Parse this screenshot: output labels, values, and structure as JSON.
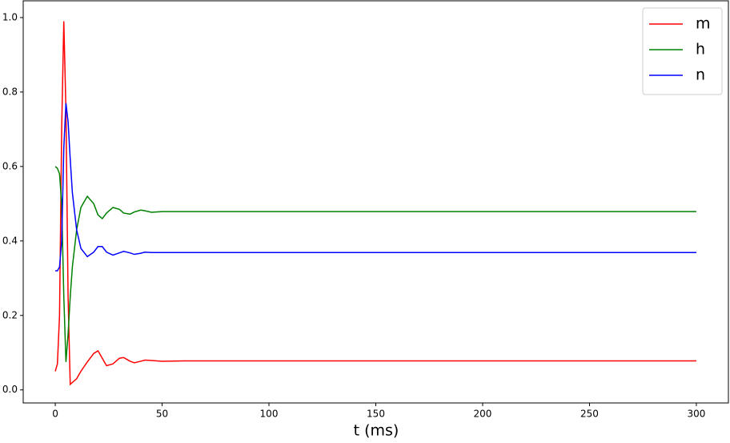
{
  "chart_data": {
    "type": "line",
    "x_label": "t (ms)",
    "x": [
      0,
      1,
      2,
      3,
      4,
      5,
      6,
      7,
      8,
      10,
      12,
      15,
      18,
      20,
      22,
      24,
      27,
      30,
      32,
      35,
      37,
      40,
      42,
      45,
      50,
      60,
      100,
      150,
      200,
      250,
      300
    ],
    "series": [
      {
        "name": "m",
        "color": "#ff0000",
        "values": [
          0.05,
          0.07,
          0.2,
          0.7,
          0.99,
          0.75,
          0.25,
          0.015,
          0.02,
          0.03,
          0.05,
          0.075,
          0.098,
          0.105,
          0.085,
          0.065,
          0.07,
          0.085,
          0.087,
          0.077,
          0.073,
          0.077,
          0.08,
          0.079,
          0.077,
          0.078,
          0.078,
          0.078,
          0.078,
          0.078,
          0.078
        ]
      },
      {
        "name": "h",
        "color": "#008000",
        "values": [
          0.6,
          0.595,
          0.58,
          0.5,
          0.25,
          0.075,
          0.15,
          0.25,
          0.33,
          0.43,
          0.49,
          0.52,
          0.5,
          0.47,
          0.46,
          0.475,
          0.49,
          0.485,
          0.475,
          0.472,
          0.478,
          0.483,
          0.481,
          0.477,
          0.479,
          0.479,
          0.479,
          0.479,
          0.479,
          0.479,
          0.479
        ]
      },
      {
        "name": "n",
        "color": "#0000ff",
        "values": [
          0.32,
          0.32,
          0.33,
          0.4,
          0.65,
          0.77,
          0.72,
          0.62,
          0.53,
          0.43,
          0.38,
          0.358,
          0.37,
          0.385,
          0.385,
          0.37,
          0.362,
          0.368,
          0.372,
          0.368,
          0.364,
          0.367,
          0.37,
          0.369,
          0.369,
          0.369,
          0.369,
          0.369,
          0.369,
          0.369,
          0.369
        ]
      }
    ],
    "xlim": [
      -15,
      315
    ],
    "xticks": [
      0,
      50,
      100,
      150,
      200,
      250,
      300
    ],
    "ylim": [
      -0.035,
      1.045
    ],
    "yticks": [
      {
        "value": 0,
        "label": "0.0"
      },
      {
        "value": 0.2,
        "label": "0.2"
      },
      {
        "value": 0.4,
        "label": "0.4"
      },
      {
        "value": 0.6,
        "label": "0.6"
      },
      {
        "value": 0.8,
        "label": "0.8"
      },
      {
        "value": 1,
        "label": "1.0"
      }
    ],
    "legend": "upper right",
    "grid": false
  }
}
